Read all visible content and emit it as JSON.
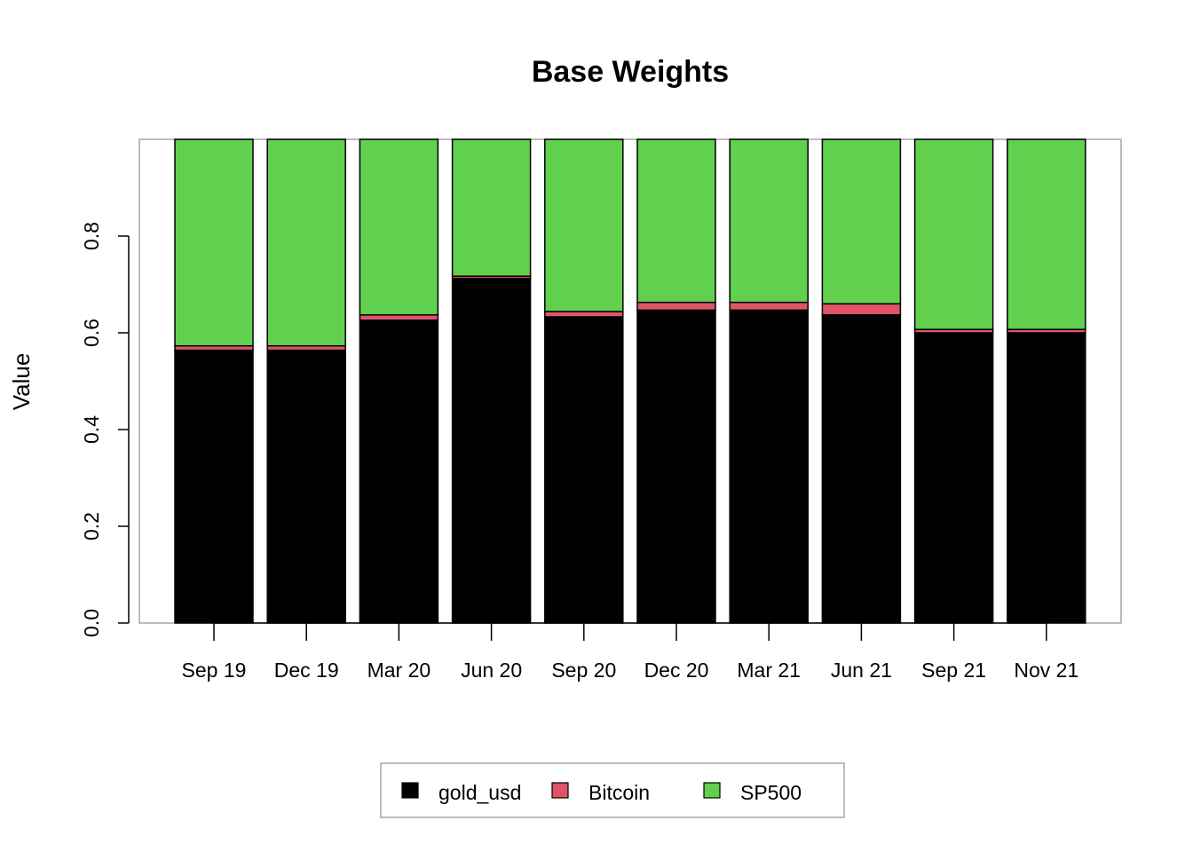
{
  "chart_data": {
    "type": "bar",
    "stacked": true,
    "title": "Base Weights",
    "xlabel": "",
    "ylabel": "Value",
    "ylim": [
      0,
      1
    ],
    "yticks": [
      "0.0",
      "0.2",
      "0.4",
      "0.6",
      "0.8"
    ],
    "categories": [
      "Sep 19",
      "Dec 19",
      "Mar 20",
      "Jun 20",
      "Sep 20",
      "Dec 20",
      "Mar 21",
      "Jun 21",
      "Sep 21",
      "Nov 21"
    ],
    "series": [
      {
        "name": "gold_usd",
        "color": "#000000",
        "values": [
          0.564,
          0.564,
          0.626,
          0.712,
          0.633,
          0.647,
          0.647,
          0.637,
          0.6,
          0.6
        ]
      },
      {
        "name": "Bitcoin",
        "color": "#DF536B",
        "values": [
          0.009,
          0.009,
          0.011,
          0.005,
          0.011,
          0.016,
          0.016,
          0.023,
          0.007,
          0.007
        ]
      },
      {
        "name": "SP500",
        "color": "#61D04F",
        "values": [
          0.427,
          0.427,
          0.363,
          0.283,
          0.356,
          0.337,
          0.337,
          0.34,
          0.393,
          0.393
        ]
      }
    ],
    "grid": false,
    "legend_position": "bottom"
  }
}
